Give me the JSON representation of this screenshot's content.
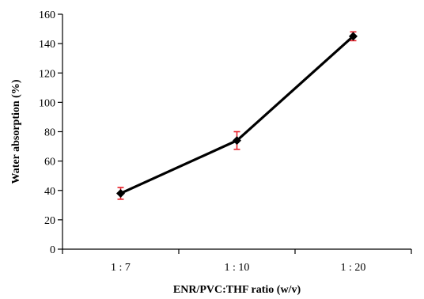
{
  "chart_data": {
    "type": "line",
    "title": "",
    "xlabel": "ENR/PVC:THF ratio (w/v)",
    "ylabel": "Water absorption (%)",
    "categories": [
      "1 : 7",
      "1 : 10",
      "1 : 20"
    ],
    "ylim": [
      0,
      160
    ],
    "yticks": [
      "0",
      "20",
      "40",
      "60",
      "80",
      "100",
      "120",
      "140",
      "160"
    ],
    "grid": false,
    "legend": "none",
    "series": [
      {
        "values": [
          38,
          74,
          145
        ],
        "errors": [
          4,
          6,
          3
        ],
        "line_color": "#000000",
        "marker": "diamond",
        "error_bar_color": "#e8202a"
      }
    ]
  }
}
